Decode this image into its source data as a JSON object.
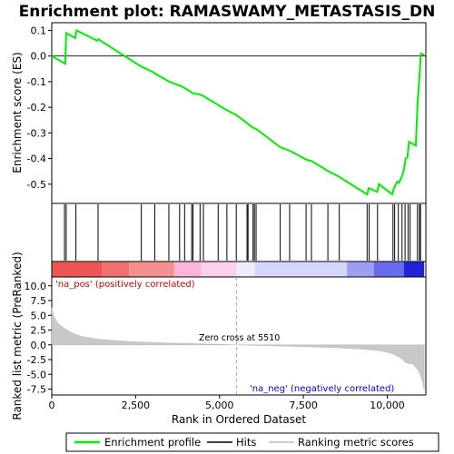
{
  "chart_data": {
    "type": "line",
    "title": "Enrichment plot: RAMASWAMY_METASTASIS_DN",
    "xlabel": "Rank in Ordered Dataset",
    "panels": {
      "es": {
        "ylabel": "Enrichment score (ES)",
        "ylim": [
          -0.575,
          0.13
        ],
        "yticks": [
          0.1,
          0.0,
          -0.1,
          -0.2,
          -0.3,
          -0.4,
          -0.5
        ],
        "ytick_labels": [
          "0.1",
          "0.0",
          "-0.1",
          "-0.2",
          "-0.3",
          "-0.4",
          "-0.5"
        ],
        "series": [
          {
            "color": "#00ee00",
            "x": [
              0,
              400,
              430,
              700,
              740,
              1350,
              1390,
              2650,
              3050,
              3100,
              3500,
              3800,
              3900,
              4150,
              4200,
              4400,
              4500,
              4950,
              5200,
              5500,
              5800,
              5900,
              6000,
              6100,
              6800,
              7100,
              7600,
              7750,
              8250,
              8550,
              9400,
              9450,
              9700,
              9750,
              10150,
              10200,
              10300,
              10350,
              10450,
              10500,
              10550,
              10600,
              10650,
              10850,
              10900,
              10950,
              11000,
              11100
            ],
            "y": [
              0.0,
              -0.03,
              0.09,
              0.07,
              0.1,
              0.06,
              0.065,
              -0.04,
              -0.065,
              -0.07,
              -0.1,
              -0.115,
              -0.12,
              -0.14,
              -0.145,
              -0.15,
              -0.155,
              -0.19,
              -0.21,
              -0.23,
              -0.26,
              -0.27,
              -0.28,
              -0.285,
              -0.355,
              -0.37,
              -0.405,
              -0.41,
              -0.45,
              -0.47,
              -0.54,
              -0.515,
              -0.53,
              -0.5,
              -0.54,
              -0.515,
              -0.49,
              -0.495,
              -0.465,
              -0.44,
              -0.4,
              -0.395,
              -0.335,
              -0.35,
              -0.19,
              -0.1,
              0.01,
              0.005
            ]
          }
        ]
      },
      "hits": {
        "positions": [
          380,
          430,
          720,
          1380,
          2670,
          3070,
          3490,
          3810,
          3960,
          4170,
          4210,
          4420,
          4520,
          4960,
          5220,
          5500,
          5820,
          5850,
          6000,
          6040,
          6090,
          6810,
          7090,
          7580,
          7740,
          8230,
          8570,
          9400,
          9460,
          9710,
          10170,
          10220,
          10330,
          10440,
          10530,
          10620,
          10680,
          10900,
          10960,
          10990
        ]
      },
      "gradient_bar": {
        "segments": [
          {
            "from": 0,
            "to": 1500,
            "color": "#ee5555"
          },
          {
            "from": 1500,
            "to": 2300,
            "color": "#f07070"
          },
          {
            "from": 2300,
            "to": 3650,
            "color": "#f59090"
          },
          {
            "from": 3650,
            "to": 4450,
            "color": "#f9b4d8"
          },
          {
            "from": 4450,
            "to": 5510,
            "color": "#fcd0ec"
          },
          {
            "from": 5510,
            "to": 6050,
            "color": "#ececfa"
          },
          {
            "from": 6050,
            "to": 8800,
            "color": "#d6d6fb"
          },
          {
            "from": 8800,
            "to": 9600,
            "color": "#9e9ef5"
          },
          {
            "from": 9600,
            "to": 10500,
            "color": "#6a6aef"
          },
          {
            "from": 10500,
            "to": 11100,
            "color": "#2222dd"
          }
        ]
      },
      "metric": {
        "ylabel": "Ranked list metric (PreRanked)",
        "ylim": [
          -8.5,
          11.5
        ],
        "yticks": [
          10.0,
          7.5,
          5.0,
          2.5,
          0.0,
          -2.5,
          -5.0,
          -7.5
        ],
        "ytick_labels": [
          "10.0",
          "7.5",
          "5.0",
          "2.5",
          "0.0",
          "-2.5",
          "-5.0",
          "-7.5"
        ],
        "zero_cross": 5510,
        "zero_cross_label": "Zero cross at 5510",
        "pos_label": "'na_pos' (positively correlated)",
        "neg_label": "'na_neg' (negatively correlated)",
        "curve": {
          "x": [
            0,
            30,
            80,
            150,
            250,
            400,
            600,
            900,
            1300,
            1800,
            2500,
            3500,
            4500,
            5510,
            6500,
            7500,
            8500,
            9300,
            9800,
            10100,
            10300,
            10450,
            10550,
            10650,
            10750,
            10850,
            10950,
            11050,
            11100
          ],
          "y": [
            6.3,
            5.3,
            4.6,
            3.9,
            3.3,
            2.7,
            2.0,
            1.4,
            1.0,
            0.75,
            0.5,
            0.3,
            0.15,
            0.0,
            -0.15,
            -0.3,
            -0.5,
            -0.75,
            -1.0,
            -1.4,
            -1.9,
            -2.4,
            -3.0,
            -3.2,
            -3.2,
            -3.8,
            -4.6,
            -6.2,
            -7.6
          ]
        }
      }
    },
    "xlim": [
      0,
      11150
    ],
    "xticks": [
      0,
      2500,
      5000,
      7500,
      10000
    ],
    "xtick_labels": [
      "0",
      "2,500",
      "5,000",
      "7,500",
      "10,000"
    ],
    "legend": {
      "placement": "bottom",
      "entries": [
        {
          "label": "Enrichment profile",
          "color": "#00ee00",
          "kind": "line"
        },
        {
          "label": "Hits",
          "color": "#000000",
          "kind": "line"
        },
        {
          "label": "Ranking metric scores",
          "color": "#bbbbbb",
          "kind": "line"
        }
      ]
    }
  }
}
